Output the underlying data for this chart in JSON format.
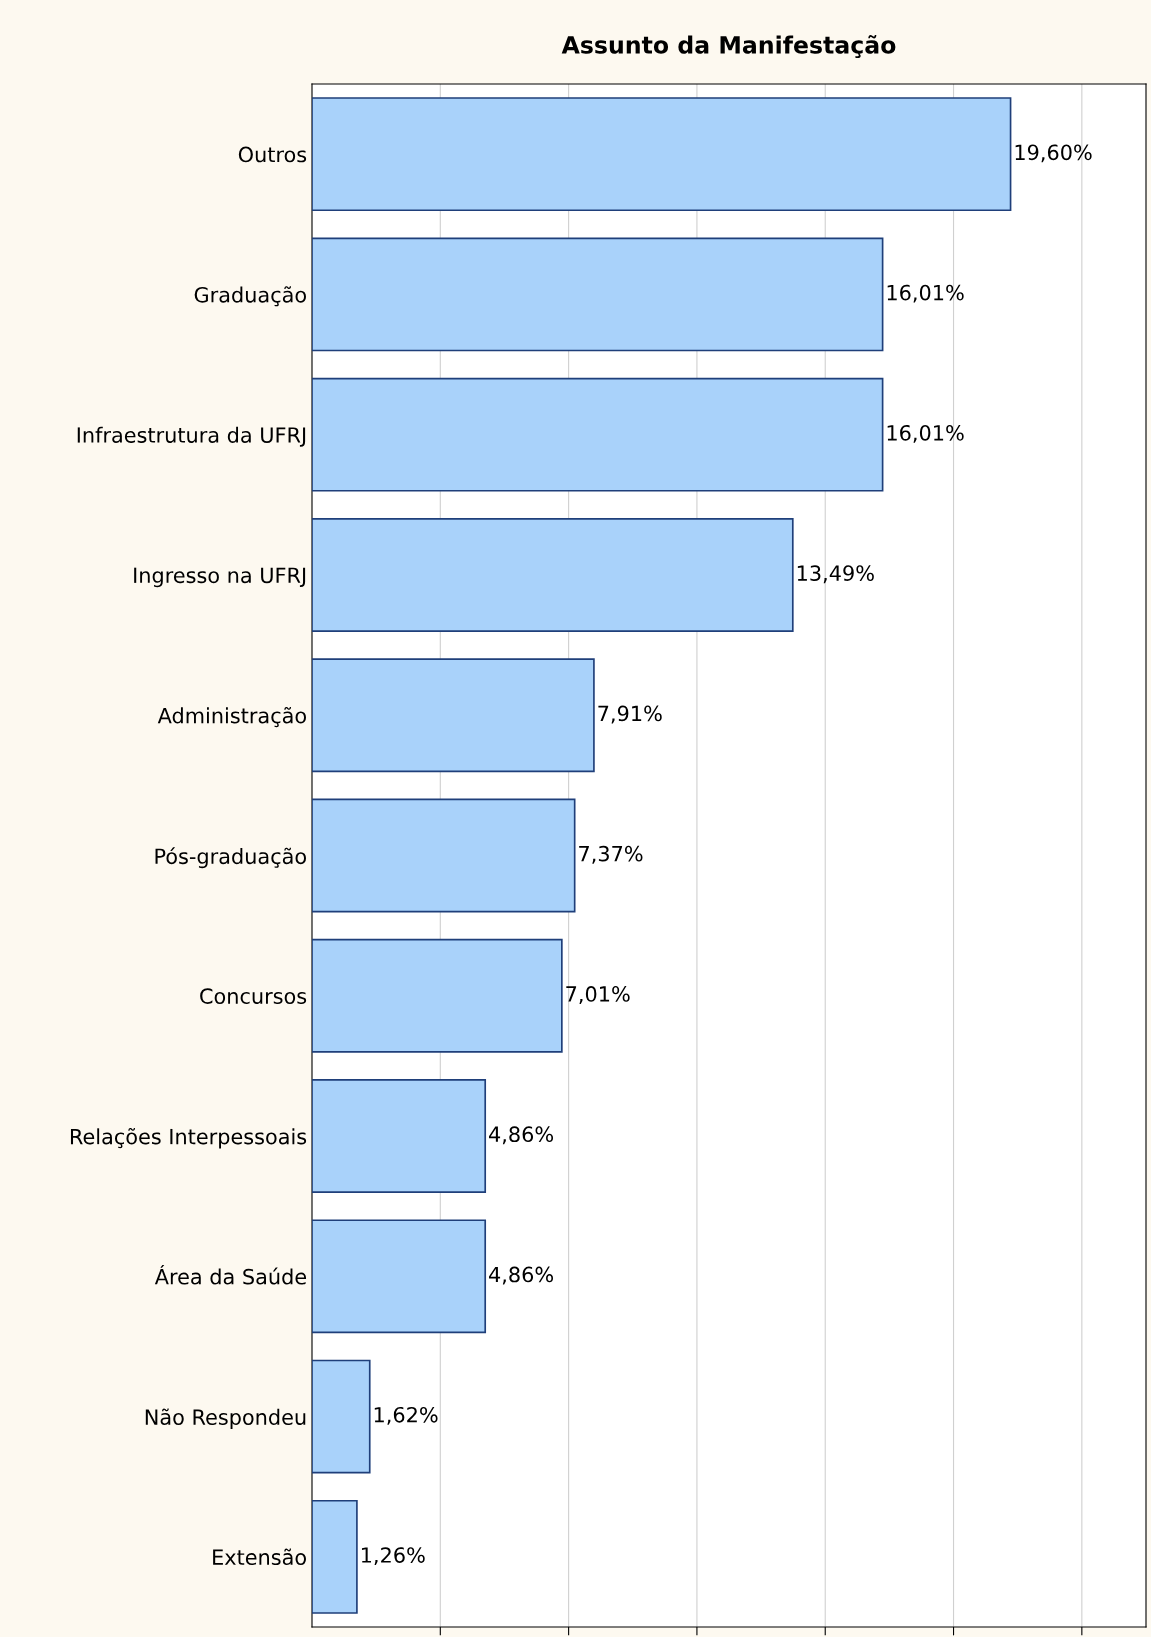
{
  "chart_data": {
    "type": "bar",
    "orientation": "horizontal",
    "title": "Assunto da Manifestação",
    "categories": [
      "Outros",
      "Graduação",
      "Infraestrutura da UFRJ",
      "Ingresso na UFRJ",
      "Administração",
      "Pós-graduação",
      "Concursos",
      "Relações Interpessoais",
      "Área da Saúde",
      "Não Respondeu",
      "Extensão"
    ],
    "values": [
      19.6,
      16.01,
      16.01,
      13.49,
      7.91,
      7.37,
      7.01,
      4.86,
      4.86,
      1.62,
      1.26
    ],
    "value_labels": [
      "19,60%",
      "16,01%",
      "16,01%",
      "13,49%",
      "7,91%",
      "7,37%",
      "7,01%",
      "4,86%",
      "4,86%",
      "1,62%",
      "1,26%"
    ],
    "color": "#a9d2fa",
    "xlim": [
      0,
      23.4
    ],
    "xticks": [
      {
        "value": 3.6,
        "label": null
      },
      {
        "value": 7.2,
        "label": null
      },
      {
        "value": 10.8,
        "label": null
      },
      {
        "value": 14.4,
        "label": null
      },
      {
        "value": 18.0,
        "label": null
      },
      {
        "value": 21.6,
        "label": null
      }
    ],
    "grid": "x",
    "tick_labels": "y"
  }
}
